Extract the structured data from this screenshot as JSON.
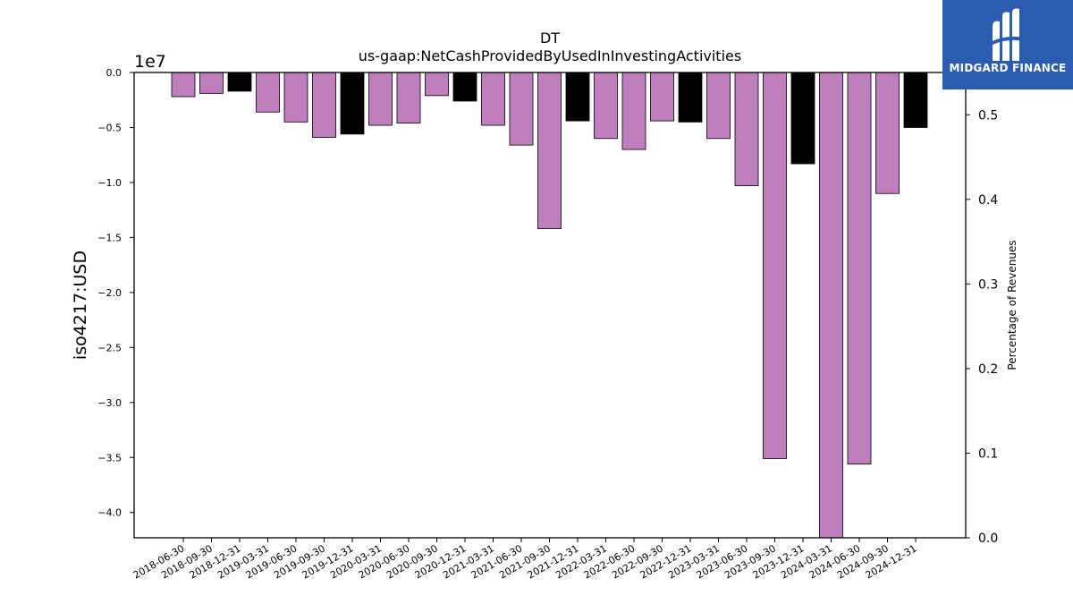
{
  "chart_data": {
    "type": "bar",
    "title": "DT",
    "subtitle": "us-gaap:NetCashProvidedByUsedInInvestingActivities",
    "ylabel": "iso4217:USD",
    "y2label": "Percentage of Revenues",
    "offset_label": "1e7",
    "ylim": [
      -4.23,
      0
    ],
    "y_ticks": [
      "0.0",
      "−0.5",
      "−1.0",
      "−1.5",
      "−2.0",
      "−2.5",
      "−3.0",
      "−3.5",
      "−4.0"
    ],
    "y_tick_values": [
      0,
      -0.5,
      -1.0,
      -1.5,
      -2.0,
      -2.5,
      -3.0,
      -3.5,
      -4.0
    ],
    "y2lim": [
      0,
      0.55
    ],
    "y2_ticks": [
      "0.0",
      "0.1",
      "0.2",
      "0.3",
      "0.4",
      "0.5"
    ],
    "y2_tick_values": [
      0,
      0.1,
      0.2,
      0.3,
      0.4,
      0.5
    ],
    "grid": false,
    "categories": [
      "2018-06-30",
      "2018-09-30",
      "2018-12-31",
      "2019-03-31",
      "2019-06-30",
      "2019-09-30",
      "2019-12-31",
      "2020-03-31",
      "2020-06-30",
      "2020-09-30",
      "2020-12-31",
      "2021-03-31",
      "2021-06-30",
      "2021-09-30",
      "2021-12-31",
      "2022-03-31",
      "2022-06-30",
      "2022-09-30",
      "2022-12-31",
      "2023-03-31",
      "2023-06-30",
      "2023-09-30",
      "2023-12-31",
      "2024-03-31",
      "2024-06-30",
      "2024-09-30",
      "2024-12-31"
    ],
    "values": [
      -0.22,
      -0.19,
      -0.17,
      -0.36,
      -0.45,
      -0.59,
      -0.56,
      -0.48,
      -0.46,
      -0.21,
      -0.26,
      -0.48,
      -0.66,
      -1.42,
      -0.44,
      -0.6,
      -0.7,
      -0.44,
      -0.45,
      -0.6,
      -1.03,
      -3.51,
      -0.83,
      -4.23,
      -3.56,
      -1.1,
      -0.5
    ],
    "value_scale": 10000000,
    "bar_colors": [
      "#bf7fbf",
      "#bf7fbf",
      "#000000",
      "#bf7fbf",
      "#bf7fbf",
      "#bf7fbf",
      "#000000",
      "#bf7fbf",
      "#bf7fbf",
      "#bf7fbf",
      "#000000",
      "#bf7fbf",
      "#bf7fbf",
      "#bf7fbf",
      "#000000",
      "#bf7fbf",
      "#bf7fbf",
      "#bf7fbf",
      "#000000",
      "#bf7fbf",
      "#bf7fbf",
      "#bf7fbf",
      "#000000",
      "#bf7fbf",
      "#bf7fbf",
      "#bf7fbf",
      "#000000"
    ]
  },
  "logo": {
    "text": "MIDGARD FINANCE",
    "background": "#2a5db0",
    "icon": "midgard-logo-icon"
  }
}
